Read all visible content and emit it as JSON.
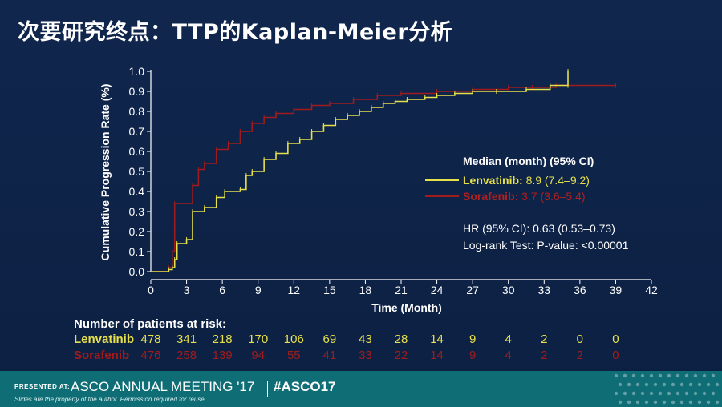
{
  "slide_title": "次要研究终点：TTP的Kaplan-Meier分析",
  "colors": {
    "background": "#0e2348",
    "lenvatinib": "#e6e04a",
    "sorafenib": "#a01c1c",
    "axis": "#ffffff",
    "footer": "#0f6e75"
  },
  "chart_data": {
    "type": "line",
    "xlabel": "Time (Month)",
    "ylabel": "Cumulative Progression Rate (%)",
    "xlim": [
      0,
      42
    ],
    "ylim": [
      0,
      1.0
    ],
    "xticks": [
      "0",
      "3",
      "6",
      "9",
      "12",
      "15",
      "18",
      "21",
      "24",
      "27",
      "30",
      "33",
      "36",
      "39",
      "42"
    ],
    "yticks": [
      "0.0",
      "0.1",
      "0.2",
      "0.3",
      "0.4",
      "0.5",
      "0.6",
      "0.7",
      "0.8",
      "0.9",
      "1.0"
    ],
    "grid": false,
    "legend_title": "Median (month) (95% CI)",
    "series": [
      {
        "name": "Lenvatinib",
        "median_label": "8.9 (7.4–9.2)",
        "x": [
          0,
          1.5,
          1.8,
          2.0,
          2.2,
          3.0,
          3.5,
          4.5,
          5.5,
          6.2,
          7.5,
          8.0,
          8.5,
          9.5,
          10.5,
          11.5,
          12.5,
          13.5,
          14.5,
          15.5,
          16.5,
          17.5,
          18.5,
          19.5,
          20.5,
          21.5,
          23.0,
          24.0,
          25.5,
          27.0,
          29.0,
          31.5,
          33.5,
          35.0,
          35.0
        ],
        "y": [
          0,
          0.01,
          0.02,
          0.06,
          0.14,
          0.16,
          0.3,
          0.32,
          0.37,
          0.4,
          0.41,
          0.48,
          0.5,
          0.56,
          0.59,
          0.64,
          0.66,
          0.7,
          0.73,
          0.76,
          0.78,
          0.8,
          0.82,
          0.84,
          0.85,
          0.86,
          0.87,
          0.88,
          0.89,
          0.9,
          0.9,
          0.91,
          0.93,
          0.93,
          1.0
        ]
      },
      {
        "name": "Sorafenib",
        "median_label": "3.7 (3.6–5.4)",
        "x": [
          0,
          1.5,
          1.8,
          2.0,
          3.5,
          4.0,
          4.5,
          5.5,
          6.5,
          7.5,
          8.5,
          9.5,
          10.5,
          12.0,
          13.5,
          15.0,
          17.0,
          19.0,
          21.0,
          24.0,
          27.0,
          30.0,
          32.0,
          34.0,
          39.0
        ],
        "y": [
          0,
          0.02,
          0.1,
          0.34,
          0.43,
          0.51,
          0.54,
          0.61,
          0.64,
          0.7,
          0.74,
          0.77,
          0.79,
          0.81,
          0.83,
          0.84,
          0.86,
          0.88,
          0.89,
          0.9,
          0.91,
          0.92,
          0.92,
          0.93,
          0.93
        ]
      }
    ],
    "annotations": [
      "HR (95% CI): 0.63 (0.53–0.73)",
      "Log-rank Test: P-value: <0.00001"
    ]
  },
  "risk_table": {
    "header": "Number of patients at risk:",
    "rows": [
      {
        "name": "Lenvatinib",
        "values": [
          "478",
          "341",
          "218",
          "170",
          "106",
          "69",
          "43",
          "28",
          "14",
          "9",
          "4",
          "2",
          "0",
          "0"
        ]
      },
      {
        "name": "Sorafenib",
        "values": [
          "476",
          "258",
          "139",
          "94",
          "55",
          "41",
          "33",
          "22",
          "14",
          "9",
          "4",
          "2",
          "2",
          "0"
        ]
      }
    ]
  },
  "footer": {
    "presented_at": "PRESENTED AT:",
    "meeting": "ASCO ANNUAL MEETING '17",
    "hashtag": "#ASCO17",
    "disclaimer": "Slides are the property of the author. Permission required for reuse."
  }
}
